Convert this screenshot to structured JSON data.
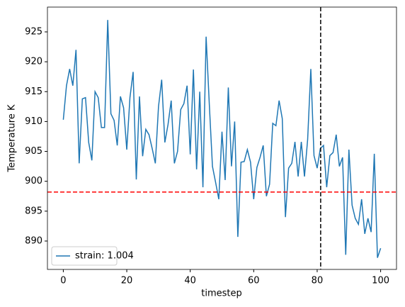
{
  "chart_data": {
    "type": "line",
    "xlabel": "timestep",
    "ylabel": "Temperature K",
    "x": [
      0,
      1,
      2,
      3,
      4,
      5,
      6,
      7,
      8,
      9,
      10,
      11,
      12,
      13,
      14,
      15,
      16,
      17,
      18,
      19,
      20,
      21,
      22,
      23,
      24,
      25,
      26,
      27,
      28,
      29,
      30,
      31,
      32,
      33,
      34,
      35,
      36,
      37,
      38,
      39,
      40,
      41,
      42,
      43,
      44,
      45,
      46,
      47,
      48,
      49,
      50,
      51,
      52,
      53,
      54,
      55,
      56,
      57,
      58,
      59,
      60,
      61,
      62,
      63,
      64,
      65,
      66,
      67,
      68,
      69,
      70,
      71,
      72,
      73,
      74,
      75,
      76,
      77,
      78,
      79,
      80,
      81,
      82,
      83,
      84,
      85,
      86,
      87,
      88,
      89,
      90,
      91,
      92,
      93,
      94,
      95,
      96,
      97,
      98,
      99,
      100
    ],
    "series": [
      {
        "name": "strain: 1.004",
        "color": "#1f77b4",
        "values": [
          910.3,
          916,
          918.8,
          916,
          922,
          903,
          913.8,
          914,
          906.5,
          903.5,
          915,
          914,
          909,
          909,
          927,
          911.3,
          910.2,
          906,
          914.2,
          912.3,
          905.3,
          914,
          918.3,
          900.3,
          914.2,
          904.2,
          908.7,
          907.8,
          905.5,
          903,
          912.5,
          917,
          906.5,
          909.5,
          913.5,
          903,
          905,
          912,
          913,
          916,
          904.5,
          918.7,
          902,
          915,
          899,
          924.2,
          913,
          902.5,
          899.8,
          897,
          908.3,
          900.2,
          915.7,
          902.5,
          910,
          890.7,
          903.2,
          903.3,
          905.3,
          903.2,
          897,
          902.3,
          904,
          906,
          897.5,
          899.5,
          909.7,
          909.3,
          913.5,
          910.5,
          894,
          902.2,
          903,
          906.6,
          900.8,
          906.6,
          900.8,
          907,
          918.8,
          904.3,
          902.2,
          905.5,
          906,
          899,
          904.3,
          904.8,
          907.8,
          902.5,
          904,
          887.7,
          905.3,
          896,
          893.8,
          892.8,
          897,
          891.2,
          893.8,
          891.5,
          904.6,
          887.2,
          888.8
        ]
      }
    ],
    "hline": {
      "value": 898.2,
      "color": "#ff0000"
    },
    "vline": {
      "value": 81.1,
      "color": "#000000"
    },
    "xlim": [
      -5,
      105
    ],
    "ylim": [
      885.25,
      929.15
    ],
    "xticks": [
      0,
      20,
      40,
      60,
      80,
      100
    ],
    "yticks": [
      890,
      895,
      900,
      905,
      910,
      915,
      920,
      925
    ],
    "legend": "lower left"
  }
}
